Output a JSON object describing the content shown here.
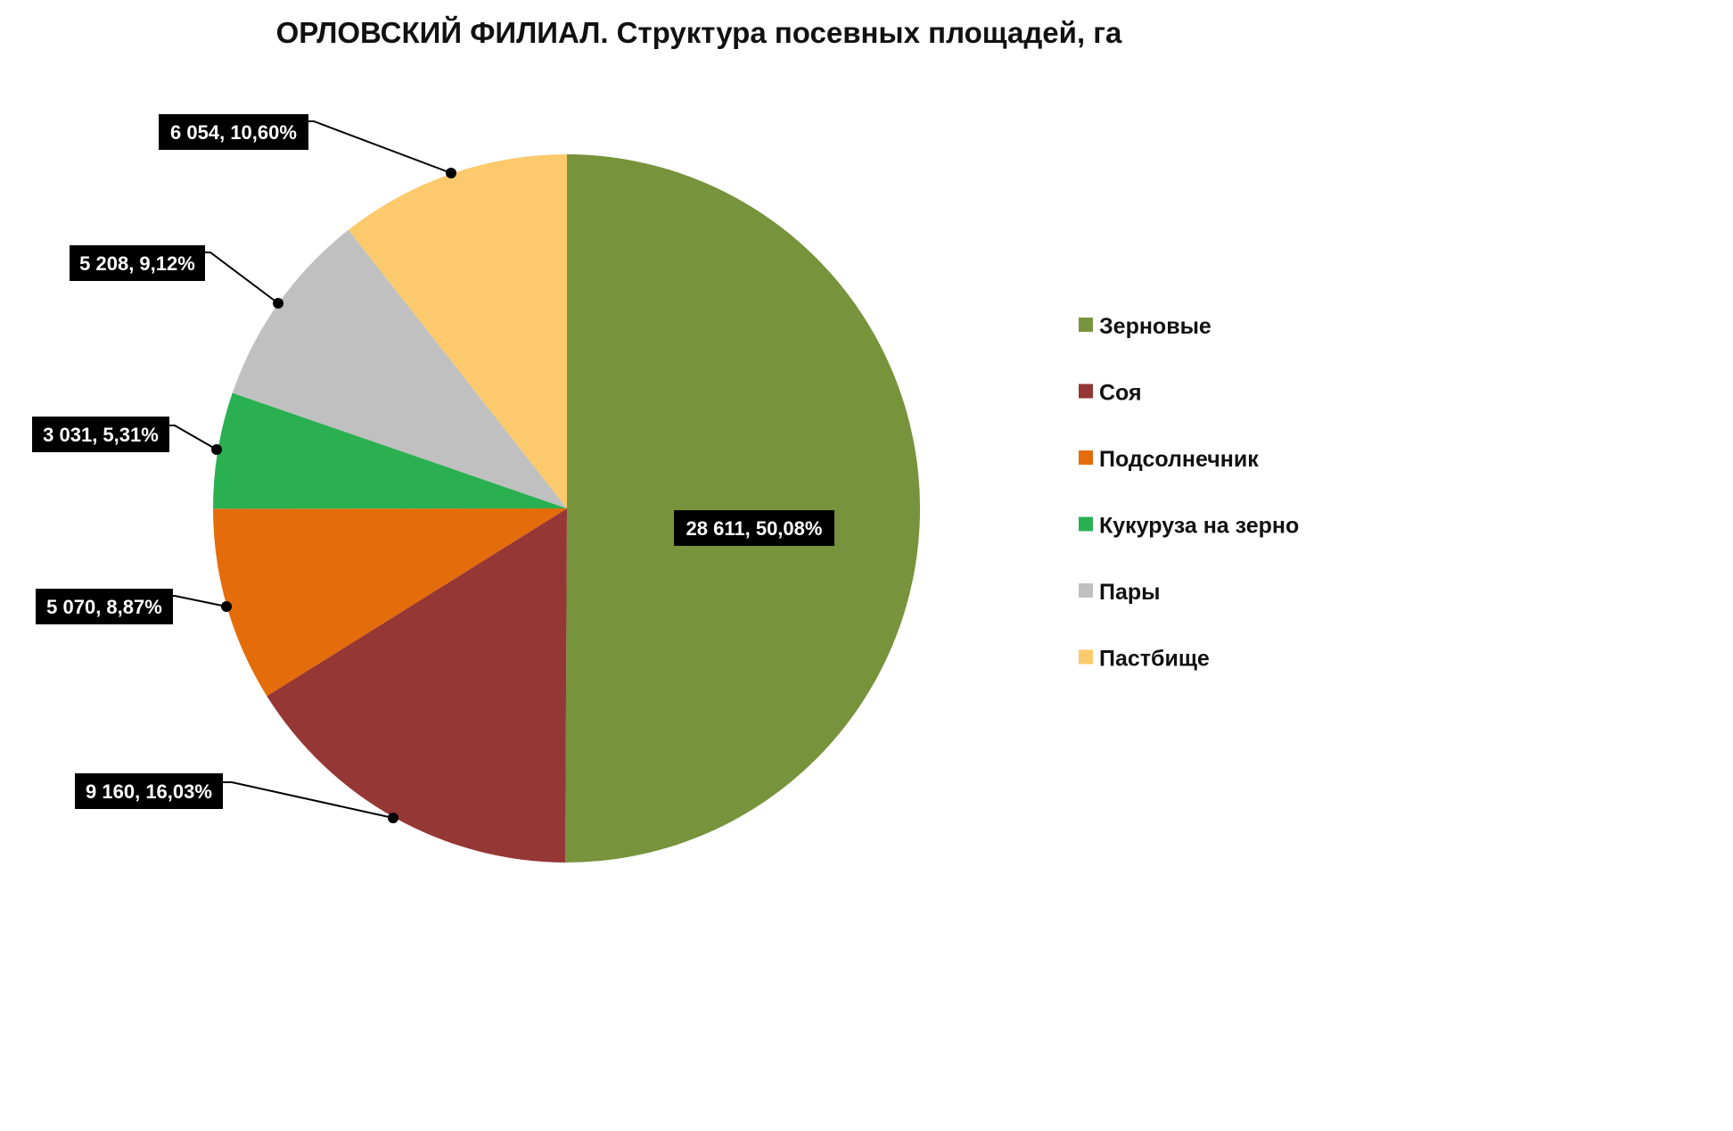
{
  "chart_data": {
    "type": "pie",
    "title": "ОРЛОВСКИЙ ФИЛИАЛ. Структура посевных площадей, га",
    "legend_position": "right",
    "slices": [
      {
        "name": "Зерновые",
        "value": 28611,
        "percent": 50.08,
        "color": "#77933c",
        "label": "28 611,  50,08%"
      },
      {
        "name": "Соя",
        "value": 9160,
        "percent": 16.03,
        "color": "#953735",
        "label": "9 160,  16,03%"
      },
      {
        "name": "Подсолнечник",
        "value": 5070,
        "percent": 8.87,
        "color": "#e46c0a",
        "label": "5 070,  8,87%"
      },
      {
        "name": "Кукуруза на зерно",
        "value": 3031,
        "percent": 5.31,
        "color": "#2ab051",
        "label": "3 031,  5,31%"
      },
      {
        "name": "Пары",
        "value": 5208,
        "percent": 9.12,
        "color": "#c0c0c0",
        "label": "5 208,  9,12%"
      },
      {
        "name": "Пастбище",
        "value": 6054,
        "percent": 10.6,
        "color": "#fcca6c",
        "label": "6 054,  10,60%"
      }
    ]
  }
}
